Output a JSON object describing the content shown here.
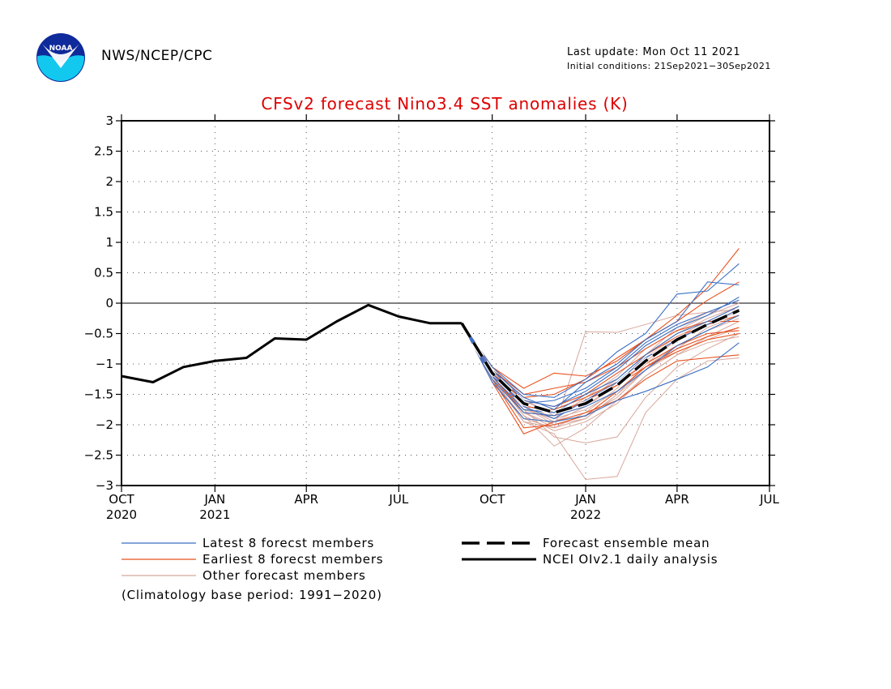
{
  "header": {
    "org": "NWS/NCEP/CPC",
    "last_update": "Last update: Mon Oct 11 2021",
    "initial_conditions": "Initial conditions: 21Sep2021−30Sep2021",
    "logo_text": "NOAA"
  },
  "colors": {
    "title": "#dd0000",
    "latest": "#3b6fc4",
    "earliest": "#e8501e",
    "other": "#d8a79b",
    "mean": "#000000",
    "analysis": "#000000"
  },
  "legend": {
    "latest": "Latest 8 forecst members",
    "earliest": "Earliest 8 forecst members",
    "other": "Other forecast members",
    "mean": "Forecast ensemble mean",
    "analysis": "NCEI OIv2.1 daily analysis",
    "climatology_note": "(Climatology base period: 1991−2020)"
  },
  "chart_data": {
    "type": "line",
    "title": "CFSv2 forecast Nino3.4 SST anomalies (K)",
    "xlabel": "",
    "ylabel": "",
    "ylim": [
      -3,
      3
    ],
    "xlim": [
      "2020-10-01",
      "2022-07-01"
    ],
    "grid": true,
    "zero_line": true,
    "y_ticks": [
      "3",
      "2.5",
      "2",
      "1.5",
      "1",
      "0.5",
      "0",
      "−0.5",
      "−1",
      "−1.5",
      "−2",
      "−2.5",
      "−3"
    ],
    "y_tick_values": [
      3,
      2.5,
      2,
      1.5,
      1,
      0.5,
      0,
      -0.5,
      -1,
      -1.5,
      -2,
      -2.5,
      -3
    ],
    "x_ticks": [
      {
        "label": "OCT",
        "year": "2020",
        "date": "2020-10-01"
      },
      {
        "label": "JAN",
        "year": "2021",
        "date": "2021-01-01"
      },
      {
        "label": "APR",
        "year": "",
        "date": "2021-04-01"
      },
      {
        "label": "JUL",
        "year": "",
        "date": "2021-07-01"
      },
      {
        "label": "OCT",
        "year": "",
        "date": "2021-10-01"
      },
      {
        "label": "JAN",
        "year": "2022",
        "date": "2022-01-01"
      },
      {
        "label": "APR",
        "year": "",
        "date": "2022-04-01"
      },
      {
        "label": "JUL",
        "year": "",
        "date": "2022-07-01"
      }
    ],
    "analysis": {
      "x": [
        "2020-10-01",
        "2020-11-01",
        "2020-12-01",
        "2021-01-01",
        "2021-02-01",
        "2021-03-01",
        "2021-04-01",
        "2021-05-01",
        "2021-06-01",
        "2021-07-01",
        "2021-08-01",
        "2021-09-01"
      ],
      "y": [
        -1.2,
        -1.3,
        -1.05,
        -0.95,
        -0.9,
        -0.58,
        -0.6,
        -0.3,
        -0.03,
        -0.22,
        -0.33,
        -0.33
      ]
    },
    "forecast_months": [
      "2021-09-01",
      "2021-10-01",
      "2021-11-01",
      "2021-12-01",
      "2022-01-01",
      "2022-02-01",
      "2022-03-01",
      "2022-04-01",
      "2022-05-01",
      "2022-06-01"
    ],
    "ensemble_mean": [
      -0.33,
      -1.15,
      -1.65,
      -1.8,
      -1.65,
      -1.35,
      -0.95,
      -0.6,
      -0.35,
      -0.12
    ],
    "series": [
      {
        "group": "latest",
        "values": [
          -0.33,
          -1.1,
          -1.6,
          -1.7,
          -1.45,
          -1.1,
          -0.7,
          -0.4,
          -0.2,
          0.1
        ]
      },
      {
        "group": "latest",
        "values": [
          -0.33,
          -1.2,
          -1.75,
          -1.8,
          -1.5,
          -1.25,
          -0.85,
          -0.5,
          -0.3,
          -0.05
        ]
      },
      {
        "group": "latest",
        "values": [
          -0.33,
          -1.05,
          -1.5,
          -1.55,
          -1.25,
          -0.8,
          -0.5,
          0.15,
          0.2,
          0.65
        ]
      },
      {
        "group": "latest",
        "values": [
          -0.33,
          -1.15,
          -1.7,
          -1.9,
          -1.6,
          -1.3,
          -0.9,
          -0.6,
          -0.35,
          -0.1
        ]
      },
      {
        "group": "latest",
        "values": [
          -0.33,
          -1.25,
          -1.8,
          -1.85,
          -1.7,
          -1.45,
          -1.1,
          -0.7,
          -0.45,
          -0.2
        ]
      },
      {
        "group": "latest",
        "values": [
          -0.33,
          -1.1,
          -1.55,
          -1.75,
          -1.3,
          -1.0,
          -0.6,
          -0.3,
          0.35,
          0.3
        ]
      },
      {
        "group": "latest",
        "values": [
          -0.33,
          -1.3,
          -1.9,
          -1.95,
          -1.85,
          -1.6,
          -1.45,
          -1.25,
          -1.05,
          -0.65
        ]
      },
      {
        "group": "latest",
        "values": [
          -0.33,
          -1.2,
          -1.65,
          -1.6,
          -1.4,
          -1.05,
          -0.65,
          -0.35,
          -0.15,
          0.05
        ]
      },
      {
        "group": "earliest",
        "values": [
          -0.33,
          -1.05,
          -1.4,
          -1.15,
          -1.2,
          -0.95,
          -0.6,
          -0.2,
          0.25,
          0.9
        ]
      },
      {
        "group": "earliest",
        "values": [
          -0.33,
          -1.1,
          -1.5,
          -1.4,
          -1.3,
          -1.05,
          -0.75,
          -0.45,
          -0.3,
          -0.3
        ]
      },
      {
        "group": "earliest",
        "values": [
          -0.33,
          -1.2,
          -1.7,
          -1.75,
          -1.55,
          -1.3,
          -1.0,
          -0.7,
          -0.5,
          -0.45
        ]
      },
      {
        "group": "earliest",
        "values": [
          -0.33,
          -1.3,
          -2.15,
          -1.95,
          -1.8,
          -1.6,
          -1.25,
          -0.95,
          -0.9,
          -0.85
        ]
      },
      {
        "group": "earliest",
        "values": [
          -0.33,
          -1.15,
          -1.6,
          -1.7,
          -1.5,
          -1.15,
          -0.85,
          -0.55,
          -0.35,
          -0.2
        ]
      },
      {
        "group": "earliest",
        "values": [
          -0.33,
          -1.25,
          -2.05,
          -2.0,
          -1.85,
          -1.45,
          -1.05,
          -0.75,
          -0.55,
          -0.4
        ]
      },
      {
        "group": "earliest",
        "values": [
          -0.33,
          -1.1,
          -1.55,
          -1.5,
          -1.25,
          -0.9,
          -0.6,
          -0.3,
          0.05,
          0.35
        ]
      },
      {
        "group": "earliest",
        "values": [
          -0.33,
          -1.2,
          -1.8,
          -1.85,
          -1.6,
          -1.35,
          -1.05,
          -0.8,
          -0.6,
          -0.5
        ]
      },
      {
        "group": "other",
        "values": [
          -0.33,
          -1.2,
          -1.95,
          -2.15,
          -2.9,
          -2.85,
          -1.8,
          -1.25,
          -0.95,
          -0.9
        ]
      },
      {
        "group": "other",
        "values": [
          -0.33,
          -1.15,
          -1.85,
          -2.35,
          -2.05,
          -1.6,
          -1.2,
          -0.85,
          -0.65,
          -0.55
        ]
      },
      {
        "group": "other",
        "values": [
          -0.33,
          -1.25,
          -1.95,
          -2.05,
          -0.47,
          -0.48,
          -0.35,
          -0.2,
          -0.15,
          -0.1
        ]
      },
      {
        "group": "other",
        "values": [
          -0.33,
          -1.1,
          -1.7,
          -2.0,
          -1.9,
          -1.5,
          -1.0,
          -0.6,
          -0.3,
          -0.05
        ]
      },
      {
        "group": "other",
        "values": [
          -0.33,
          -1.15,
          -1.75,
          -2.2,
          -2.3,
          -2.2,
          -1.55,
          -1.05,
          -0.75,
          -0.5
        ]
      },
      {
        "group": "other",
        "values": [
          -0.33,
          -1.05,
          -1.6,
          -1.85,
          -1.7,
          -1.3,
          -0.9,
          -0.55,
          -0.3,
          -0.15
        ]
      },
      {
        "group": "other",
        "values": [
          -0.33,
          -1.2,
          -1.85,
          -2.1,
          -1.95,
          -1.65,
          -1.2,
          -0.85,
          -0.55,
          -0.3
        ]
      },
      {
        "group": "other",
        "values": [
          -0.33,
          -1.1,
          -1.65,
          -1.9,
          -1.75,
          -1.45,
          -1.05,
          -0.7,
          -0.45,
          -0.25
        ]
      },
      {
        "group": "other",
        "values": [
          -0.33,
          -1.15,
          -1.8,
          -2.0,
          -1.85,
          -1.55,
          -1.1,
          -0.75,
          -0.4,
          -0.2
        ]
      },
      {
        "group": "other",
        "values": [
          -0.33,
          -1.25,
          -1.9,
          -2.05,
          -1.8,
          -1.4,
          -0.95,
          -0.6,
          -0.35,
          -0.1
        ]
      },
      {
        "group": "other",
        "values": [
          -0.33,
          -1.1,
          -1.7,
          -1.95,
          -1.7,
          -1.35,
          -0.85,
          -0.5,
          -0.25,
          -0.05
        ]
      },
      {
        "group": "other",
        "values": [
          -0.33,
          -1.2,
          -1.75,
          -1.9,
          -1.55,
          -1.2,
          -0.75,
          -0.45,
          -0.2,
          0.0
        ]
      },
      {
        "group": "other",
        "values": [
          -0.33,
          -1.15,
          -1.8,
          -2.05,
          -1.9,
          -1.5,
          -1.1,
          -0.8,
          -0.6,
          -0.4
        ]
      },
      {
        "group": "other",
        "values": [
          -0.33,
          -1.05,
          -1.6,
          -1.8,
          -1.6,
          -1.25,
          -0.85,
          -0.4,
          -0.15,
          0.05
        ]
      }
    ]
  }
}
